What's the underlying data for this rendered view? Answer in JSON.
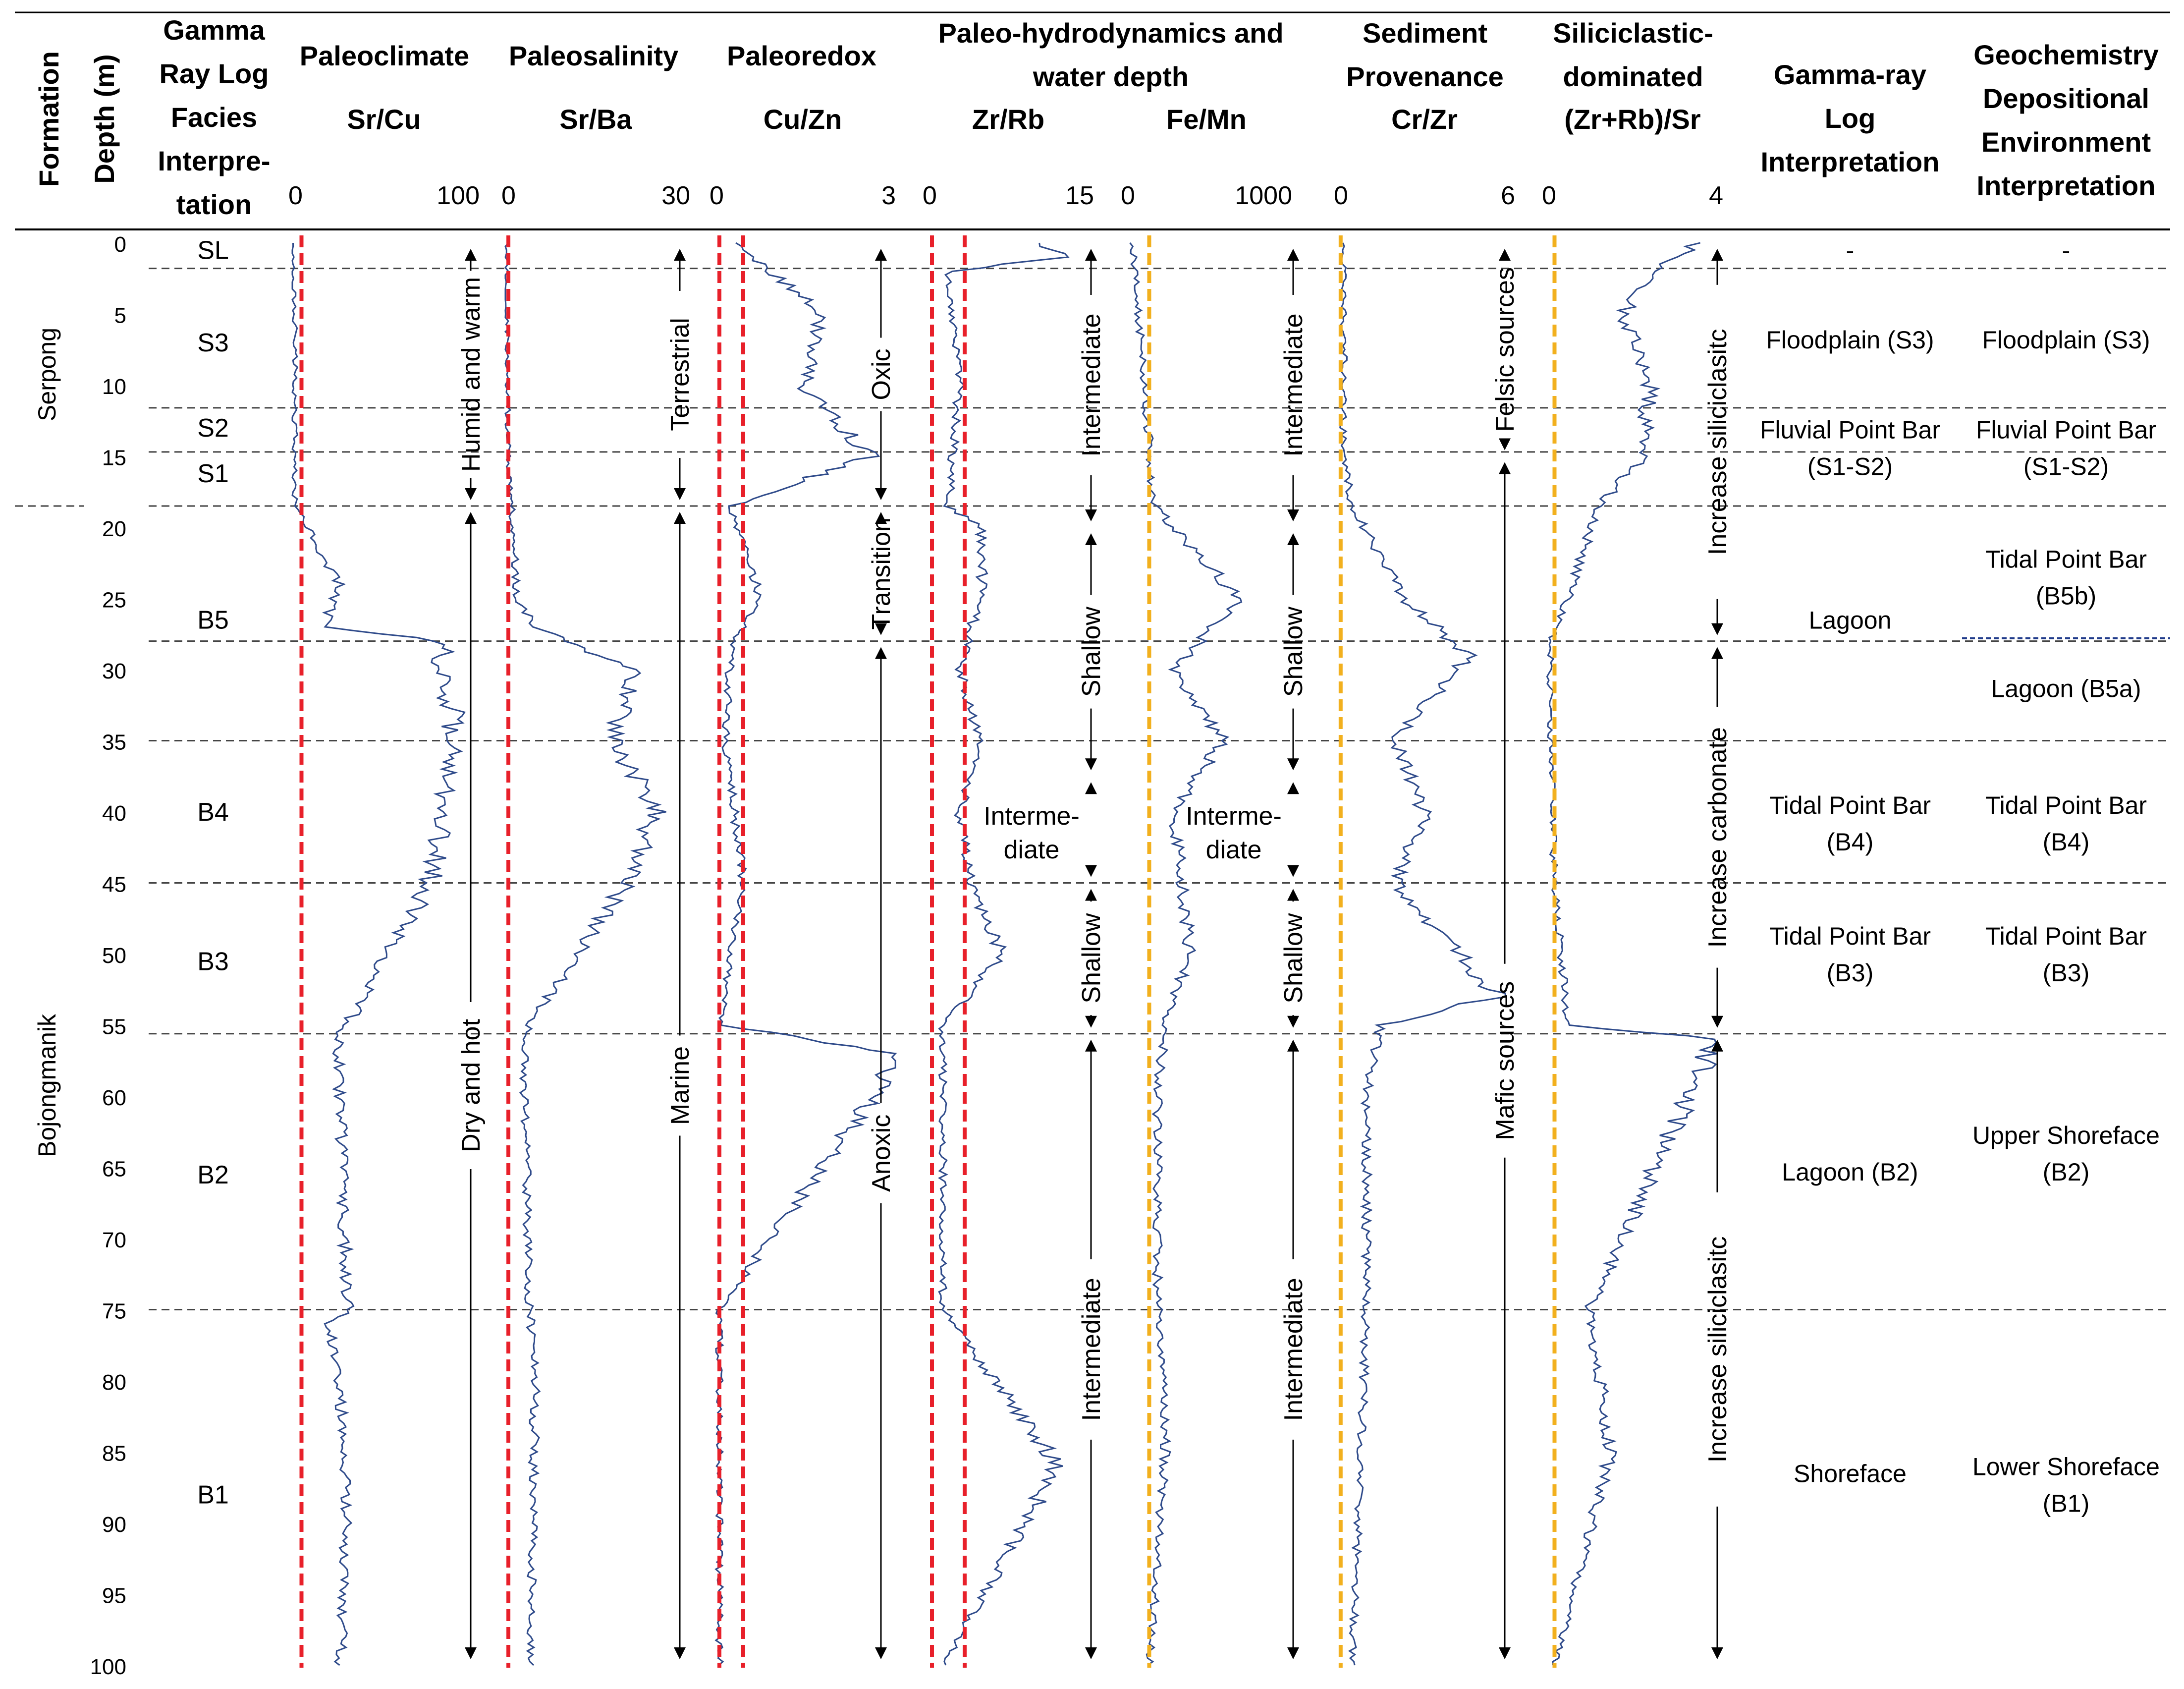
{
  "headers": {
    "formation": "Formation",
    "depth": "Depth (m)",
    "gr_facies": [
      "Gamma",
      "Ray Log",
      "Facies",
      "Interpre-",
      "tation"
    ],
    "paleoclimate": "Paleoclimate",
    "paleosalinity": "Paleosalinity",
    "paleoredox": "Paleoredox",
    "hydro": [
      "Paleo-hydrodynamics and",
      "water depth"
    ],
    "provenance": [
      "Sediment",
      "Provenance"
    ],
    "silici": [
      "Siliciclastic-",
      "dominated"
    ],
    "gr_interp": [
      "Gamma-ray",
      "Log",
      "Interpretation"
    ],
    "geo_interp": [
      "Geochemistry",
      "Depositional",
      "Environment",
      "Interpretation"
    ]
  },
  "formations": [
    {
      "name": "Serpong",
      "top": 0,
      "bottom": 18.5
    },
    {
      "name": "Bojongmanik",
      "top": 18.5,
      "bottom": 100
    }
  ],
  "facies": [
    {
      "label": "SL",
      "depth": 0.5
    },
    {
      "label": "S3",
      "depth": 7
    },
    {
      "label": "S2",
      "depth": 13
    },
    {
      "label": "S1",
      "depth": 16.2
    },
    {
      "label": "B5",
      "depth": 26.5
    },
    {
      "label": "B4",
      "depth": 40
    },
    {
      "label": "B3",
      "depth": 50.5
    },
    {
      "label": "B2",
      "depth": 65.5
    },
    {
      "label": "B1",
      "depth": 88
    }
  ],
  "boundaries": [
    1.8,
    11.6,
    14.7,
    18.5,
    28,
    35,
    45,
    55.6,
    75
  ],
  "gr_interpretation": [
    {
      "lines": [
        "-"
      ],
      "depth": 0.5
    },
    {
      "lines": [
        "Floodplain (S3)"
      ],
      "depth": 6.8
    },
    {
      "lines": [
        "Fluvial Point Bar",
        "(S1-S2)"
      ],
      "depth": 14.4
    },
    {
      "lines": [
        "Lagoon"
      ],
      "depth": 26.5
    },
    {
      "lines": [
        "Tidal Point Bar",
        "(B4)"
      ],
      "depth": 40.8
    },
    {
      "lines": [
        "Tidal Point Bar",
        "(B3)"
      ],
      "depth": 50
    },
    {
      "lines": [
        "Lagoon (B2)"
      ],
      "depth": 65.3
    },
    {
      "lines": [
        "Shoreface"
      ],
      "depth": 86.5
    }
  ],
  "geo_interpretation": [
    {
      "lines": [
        "-"
      ],
      "depth": 0.5
    },
    {
      "lines": [
        "Floodplain (S3)"
      ],
      "depth": 6.8
    },
    {
      "lines": [
        "Fluvial Point Bar",
        "(S1-S2)"
      ],
      "depth": 14.4
    },
    {
      "lines": [
        "Tidal Point Bar",
        "(B5b)"
      ],
      "depth": 23.5
    },
    {
      "lines": [
        "Lagoon (B5a)"
      ],
      "depth": 31.3
    },
    {
      "lines": [
        "Tidal Point Bar",
        "(B4)"
      ],
      "depth": 40.8
    },
    {
      "lines": [
        "Tidal Point Bar",
        "(B3)"
      ],
      "depth": 50
    },
    {
      "lines": [
        "Upper Shoreface",
        "(B2)"
      ],
      "depth": 64
    },
    {
      "lines": [
        "Lower Shoreface",
        "(B1)"
      ],
      "depth": 87.3
    }
  ],
  "geo_sub_boundary": 27.8,
  "chart_data": {
    "type": "line",
    "orientation": "vertical",
    "y_axis": {
      "label": "Depth (m)",
      "ticks": [
        0,
        5,
        10,
        15,
        20,
        25,
        30,
        35,
        40,
        45,
        50,
        55,
        60,
        65,
        70,
        75,
        80,
        85,
        90,
        95,
        100
      ],
      "ylim": [
        0,
        100
      ],
      "reversed": true
    },
    "series_color": "#2e4a8a",
    "panels": [
      {
        "id": "p1",
        "title": "Sr/Cu",
        "xlim": [
          0,
          100
        ],
        "xticks": [
          "0",
          "100"
        ],
        "thresholds": [
          {
            "value": 5,
            "color": "#e8202a"
          }
        ],
        "arrows": [
          {
            "label": "Humid and warm",
            "top": 0,
            "bottom": 18.5
          },
          {
            "label": "Dry and hot",
            "top": 18.5,
            "bottom": 100
          }
        ],
        "depth": [
          0,
          5,
          10,
          15,
          18.5,
          20,
          24,
          27,
          28,
          35,
          45,
          55,
          56,
          75,
          76,
          85,
          100
        ],
        "values": [
          0,
          1,
          1,
          1,
          1,
          8,
          25,
          18,
          80,
          90,
          75,
          30,
          25,
          30,
          20,
          30,
          26
        ]
      },
      {
        "id": "p2",
        "title": "Sr/Ba",
        "xlim": [
          0,
          30
        ],
        "xticks": [
          "0",
          "30"
        ],
        "thresholds": [
          {
            "value": 0.5,
            "color": "#e8202a"
          }
        ],
        "arrows": [
          {
            "label": "Terrestrial",
            "top": 0,
            "bottom": 18.5
          },
          {
            "label": "Marine",
            "top": 18.5,
            "bottom": 100
          }
        ],
        "depth": [
          0,
          15,
          18.5,
          25,
          27,
          30,
          35,
          40,
          45,
          50,
          55,
          56,
          75,
          80,
          100
        ],
        "values": [
          0,
          0.5,
          1,
          2,
          5,
          21,
          18,
          25,
          20,
          12,
          4,
          3,
          4,
          5,
          4
        ]
      },
      {
        "id": "p3",
        "title": "Cu/Zn",
        "xlim": [
          0,
          3
        ],
        "xticks": [
          "0",
          "3"
        ],
        "thresholds": [
          {
            "value": 0.1,
            "color": "#e8202a"
          },
          {
            "value": 0.5,
            "color": "#e8202a"
          }
        ],
        "arrows": [
          {
            "label": "Oxic",
            "top": 0,
            "bottom": 18.5
          },
          {
            "label": "Transition",
            "top": 18.5,
            "bottom": 28
          },
          {
            "label": "Anoxic",
            "top": 28,
            "bottom": 100
          }
        ],
        "depth": [
          0,
          5,
          10,
          15,
          18.5,
          25,
          28,
          35,
          45,
          55,
          57,
          75,
          100
        ],
        "values": [
          0.4,
          1.8,
          1.5,
          2.6,
          0.3,
          0.8,
          0.3,
          0.2,
          0.5,
          0.1,
          3.2,
          0.1,
          0.1
        ]
      },
      {
        "id": "p4",
        "title": "Zr/Rb",
        "xlim": [
          0,
          15
        ],
        "xticks": [
          "0",
          "15"
        ],
        "thresholds": [
          {
            "value": 0.5,
            "color": "#e8202a"
          },
          {
            "value": 3.5,
            "color": "#e8202a"
          }
        ],
        "arrows": [
          {
            "label": "Intermediate",
            "top": 0,
            "bottom": 20
          },
          {
            "label": "Shallow",
            "top": 20,
            "bottom": 37.5
          },
          {
            "label": "Interme-diate",
            "top": 37.5,
            "bottom": 45
          },
          {
            "label": "Shallow",
            "top": 45,
            "bottom": 55.6
          },
          {
            "label": "Intermediate",
            "top": 55.6,
            "bottom": 100
          }
        ],
        "depth": [
          0,
          1,
          2,
          10,
          18.5,
          20,
          25,
          30,
          35,
          40,
          45,
          50,
          55,
          60,
          75,
          86,
          100
        ],
        "values": [
          10,
          13,
          2,
          3,
          2,
          5,
          5,
          3,
          5,
          3,
          4,
          7,
          1.5,
          1.5,
          1.5,
          12,
          1.5
        ]
      },
      {
        "id": "p5",
        "title": "Fe/Mn",
        "xlim": [
          0,
          1000
        ],
        "xticks": [
          "0",
          "1000"
        ],
        "thresholds": [
          {
            "value": 150,
            "color": "#f2b01e"
          }
        ],
        "arrows": [
          {
            "label": "Intermediate",
            "top": 0,
            "bottom": 20
          },
          {
            "label": "Shallow",
            "top": 20,
            "bottom": 37.5
          },
          {
            "label": "Interme-diate",
            "top": 37.5,
            "bottom": 45
          },
          {
            "label": "Shallow",
            "top": 45,
            "bottom": 55.6
          },
          {
            "label": "Intermediate",
            "top": 55.6,
            "bottom": 100
          }
        ],
        "depth": [
          0,
          10,
          18.5,
          25,
          30,
          35,
          40,
          50,
          55,
          60,
          75,
          85,
          100
        ],
        "values": [
          50,
          120,
          180,
          700,
          300,
          600,
          300,
          400,
          250,
          200,
          200,
          250,
          150
        ]
      },
      {
        "id": "p6",
        "title": "Cr/Zr",
        "xlim": [
          0,
          6
        ],
        "xticks": [
          "0",
          "6"
        ],
        "thresholds": [
          {
            "value": 0.1,
            "color": "#f2b01e"
          }
        ],
        "arrows": [
          {
            "label": "Felsic sources",
            "top": 0,
            "bottom": 15
          },
          {
            "label": "Mafic sources",
            "top": 15,
            "bottom": 100
          }
        ],
        "depth": [
          0,
          15,
          18.5,
          25,
          29,
          35,
          40,
          45,
          53,
          55,
          60,
          75,
          100
        ],
        "values": [
          0.2,
          0.2,
          0.5,
          2.3,
          4.5,
          2,
          3,
          2,
          5.5,
          1.5,
          1,
          1,
          0.5
        ]
      },
      {
        "id": "p7",
        "title": "(Zr+Rb)/Sr",
        "xlim": [
          0,
          4
        ],
        "xticks": [
          "0",
          "4"
        ],
        "thresholds": [
          {
            "value": 0.2,
            "color": "#f2b01e"
          }
        ],
        "arrows": [
          {
            "label": "Increase siliciclasitc",
            "top": 0,
            "bottom": 28
          },
          {
            "label": "Increase carbonate",
            "top": 28,
            "bottom": 55.6
          },
          {
            "label": "Increase siliciclasitc",
            "top": 55.6,
            "bottom": 100
          }
        ],
        "depth": [
          0,
          2,
          5,
          10,
          15,
          18.5,
          25,
          28,
          35,
          45,
          55,
          56,
          75,
          85,
          100
        ],
        "values": [
          3.4,
          2.5,
          1.8,
          2.4,
          2.2,
          1.2,
          0.5,
          0.1,
          0.1,
          0.2,
          0.5,
          3.9,
          1,
          1.5,
          0.2
        ]
      }
    ]
  }
}
